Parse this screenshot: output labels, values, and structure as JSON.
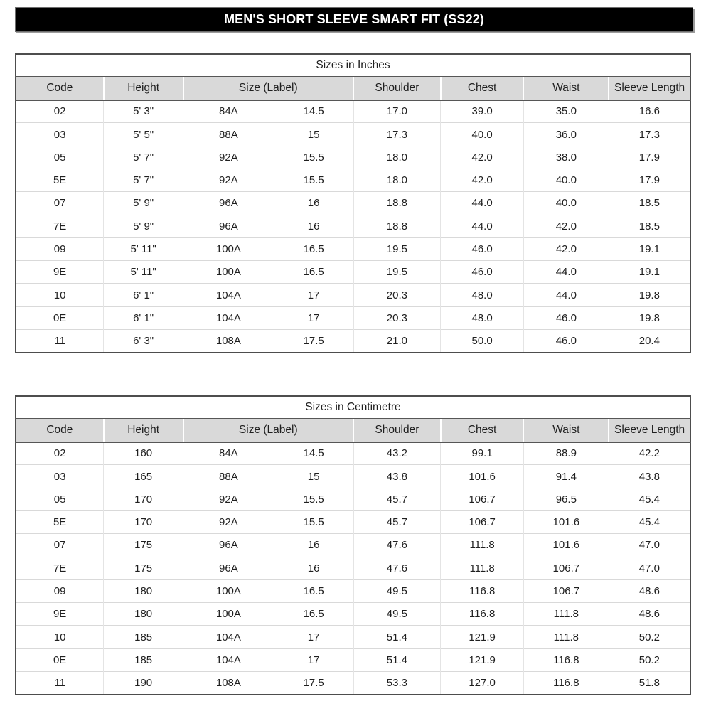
{
  "banner": {
    "title": "MEN'S SHORT SLEEVE SMART FIT (SS22)",
    "bg_color": "#000000",
    "text_color": "#ffffff"
  },
  "colors": {
    "header_row_bg": "#d9d9d9",
    "outer_border": "#4d4d4d",
    "grid_line": "#d9d9d9"
  },
  "tables": [
    {
      "title": "Sizes in Inches",
      "columns": [
        {
          "label": "Code",
          "colspan": 1
        },
        {
          "label": "Height",
          "colspan": 1
        },
        {
          "label": "Size (Label)",
          "colspan": 2
        },
        {
          "label": "Shoulder",
          "colspan": 1
        },
        {
          "label": "Chest",
          "colspan": 1
        },
        {
          "label": "Waist",
          "colspan": 1
        },
        {
          "label": "Sleeve Length",
          "colspan": 1
        }
      ],
      "rows": [
        [
          "02",
          "5' 3\"",
          "84A",
          "14.5",
          "17.0",
          "39.0",
          "35.0",
          "16.6"
        ],
        [
          "03",
          "5' 5\"",
          "88A",
          "15",
          "17.3",
          "40.0",
          "36.0",
          "17.3"
        ],
        [
          "05",
          "5' 7\"",
          "92A",
          "15.5",
          "18.0",
          "42.0",
          "38.0",
          "17.9"
        ],
        [
          "5E",
          "5' 7\"",
          "92A",
          "15.5",
          "18.0",
          "42.0",
          "40.0",
          "17.9"
        ],
        [
          "07",
          "5' 9\"",
          "96A",
          "16",
          "18.8",
          "44.0",
          "40.0",
          "18.5"
        ],
        [
          "7E",
          "5' 9\"",
          "96A",
          "16",
          "18.8",
          "44.0",
          "42.0",
          "18.5"
        ],
        [
          "09",
          "5' 11\"",
          "100A",
          "16.5",
          "19.5",
          "46.0",
          "42.0",
          "19.1"
        ],
        [
          "9E",
          "5' 11\"",
          "100A",
          "16.5",
          "19.5",
          "46.0",
          "44.0",
          "19.1"
        ],
        [
          "10",
          "6' 1\"",
          "104A",
          "17",
          "20.3",
          "48.0",
          "44.0",
          "19.8"
        ],
        [
          "0E",
          "6' 1\"",
          "104A",
          "17",
          "20.3",
          "48.0",
          "46.0",
          "19.8"
        ],
        [
          "11",
          "6' 3\"",
          "108A",
          "17.5",
          "21.0",
          "50.0",
          "46.0",
          "20.4"
        ]
      ]
    },
    {
      "title": "Sizes in Centimetre",
      "columns": [
        {
          "label": "Code",
          "colspan": 1
        },
        {
          "label": "Height",
          "colspan": 1
        },
        {
          "label": "Size (Label)",
          "colspan": 2
        },
        {
          "label": "Shoulder",
          "colspan": 1
        },
        {
          "label": "Chest",
          "colspan": 1
        },
        {
          "label": "Waist",
          "colspan": 1
        },
        {
          "label": "Sleeve Length",
          "colspan": 1
        }
      ],
      "rows": [
        [
          "02",
          "160",
          "84A",
          "14.5",
          "43.2",
          "99.1",
          "88.9",
          "42.2"
        ],
        [
          "03",
          "165",
          "88A",
          "15",
          "43.8",
          "101.6",
          "91.4",
          "43.8"
        ],
        [
          "05",
          "170",
          "92A",
          "15.5",
          "45.7",
          "106.7",
          "96.5",
          "45.4"
        ],
        [
          "5E",
          "170",
          "92A",
          "15.5",
          "45.7",
          "106.7",
          "101.6",
          "45.4"
        ],
        [
          "07",
          "175",
          "96A",
          "16",
          "47.6",
          "111.8",
          "101.6",
          "47.0"
        ],
        [
          "7E",
          "175",
          "96A",
          "16",
          "47.6",
          "111.8",
          "106.7",
          "47.0"
        ],
        [
          "09",
          "180",
          "100A",
          "16.5",
          "49.5",
          "116.8",
          "106.7",
          "48.6"
        ],
        [
          "9E",
          "180",
          "100A",
          "16.5",
          "49.5",
          "116.8",
          "111.8",
          "48.6"
        ],
        [
          "10",
          "185",
          "104A",
          "17",
          "51.4",
          "121.9",
          "111.8",
          "50.2"
        ],
        [
          "0E",
          "185",
          "104A",
          "17",
          "51.4",
          "121.9",
          "116.8",
          "50.2"
        ],
        [
          "11",
          "190",
          "108A",
          "17.5",
          "53.3",
          "127.0",
          "116.8",
          "51.8"
        ]
      ]
    }
  ]
}
